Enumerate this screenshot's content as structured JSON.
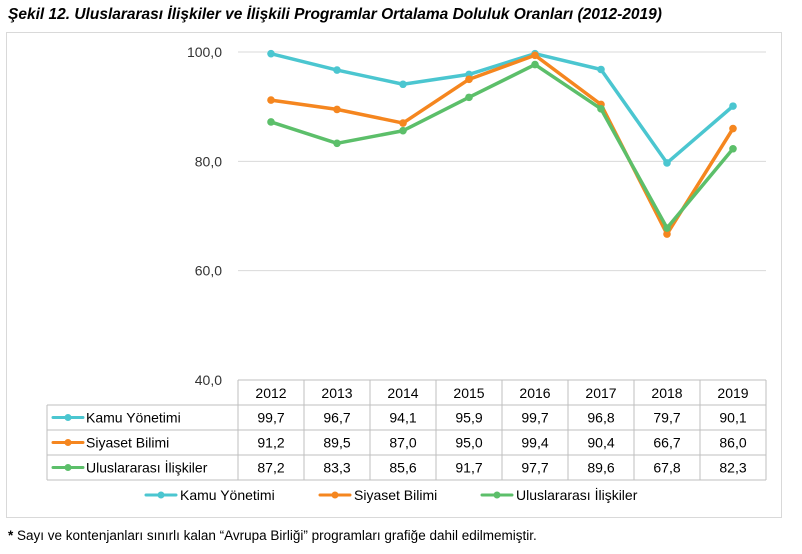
{
  "title": "Şekil 12. Uluslararası İlişkiler ve İlişkili Programlar Ortalama Doluluk Oranları (2012-2019)",
  "footnote": {
    "star": "*",
    "text": " Sayı ve kontenjanları sınırlı kalan “Avrupa Birliği” programları grafiğe dahil edilmemiştir."
  },
  "chart_data": {
    "type": "line",
    "categories": [
      "2012",
      "2013",
      "2014",
      "2015",
      "2016",
      "2017",
      "2018",
      "2019"
    ],
    "ylim": [
      40,
      100
    ],
    "yticks": [
      40,
      60,
      80,
      100
    ],
    "ytick_labels": [
      "40,0",
      "60,0",
      "80,0",
      "100,0"
    ],
    "grid": true,
    "legend_position": "bottom",
    "data_table": true,
    "series": [
      {
        "name": "Kamu Yönetimi",
        "color": "#4bc6d0",
        "values": [
          99.7,
          96.7,
          94.1,
          95.9,
          99.7,
          96.8,
          79.7,
          90.1
        ],
        "labels": [
          "99,7",
          "96,7",
          "94,1",
          "95,9",
          "99,7",
          "96,8",
          "79,7",
          "90,1"
        ]
      },
      {
        "name": "Siyaset Bilimi",
        "color": "#f5861f",
        "values": [
          91.2,
          89.5,
          87.0,
          95.0,
          99.4,
          90.4,
          66.7,
          86.0
        ],
        "labels": [
          "91,2",
          "89,5",
          "87,0",
          "95,0",
          "99,4",
          "90,4",
          "66,7",
          "86,0"
        ]
      },
      {
        "name": "Uluslararası İlişkiler",
        "color": "#5cbf6a",
        "values": [
          87.2,
          83.3,
          85.6,
          91.7,
          97.7,
          89.6,
          67.8,
          82.3
        ],
        "labels": [
          "87,2",
          "83,3",
          "85,6",
          "91,7",
          "97,7",
          "89,6",
          "67,8",
          "82,3"
        ]
      }
    ]
  }
}
